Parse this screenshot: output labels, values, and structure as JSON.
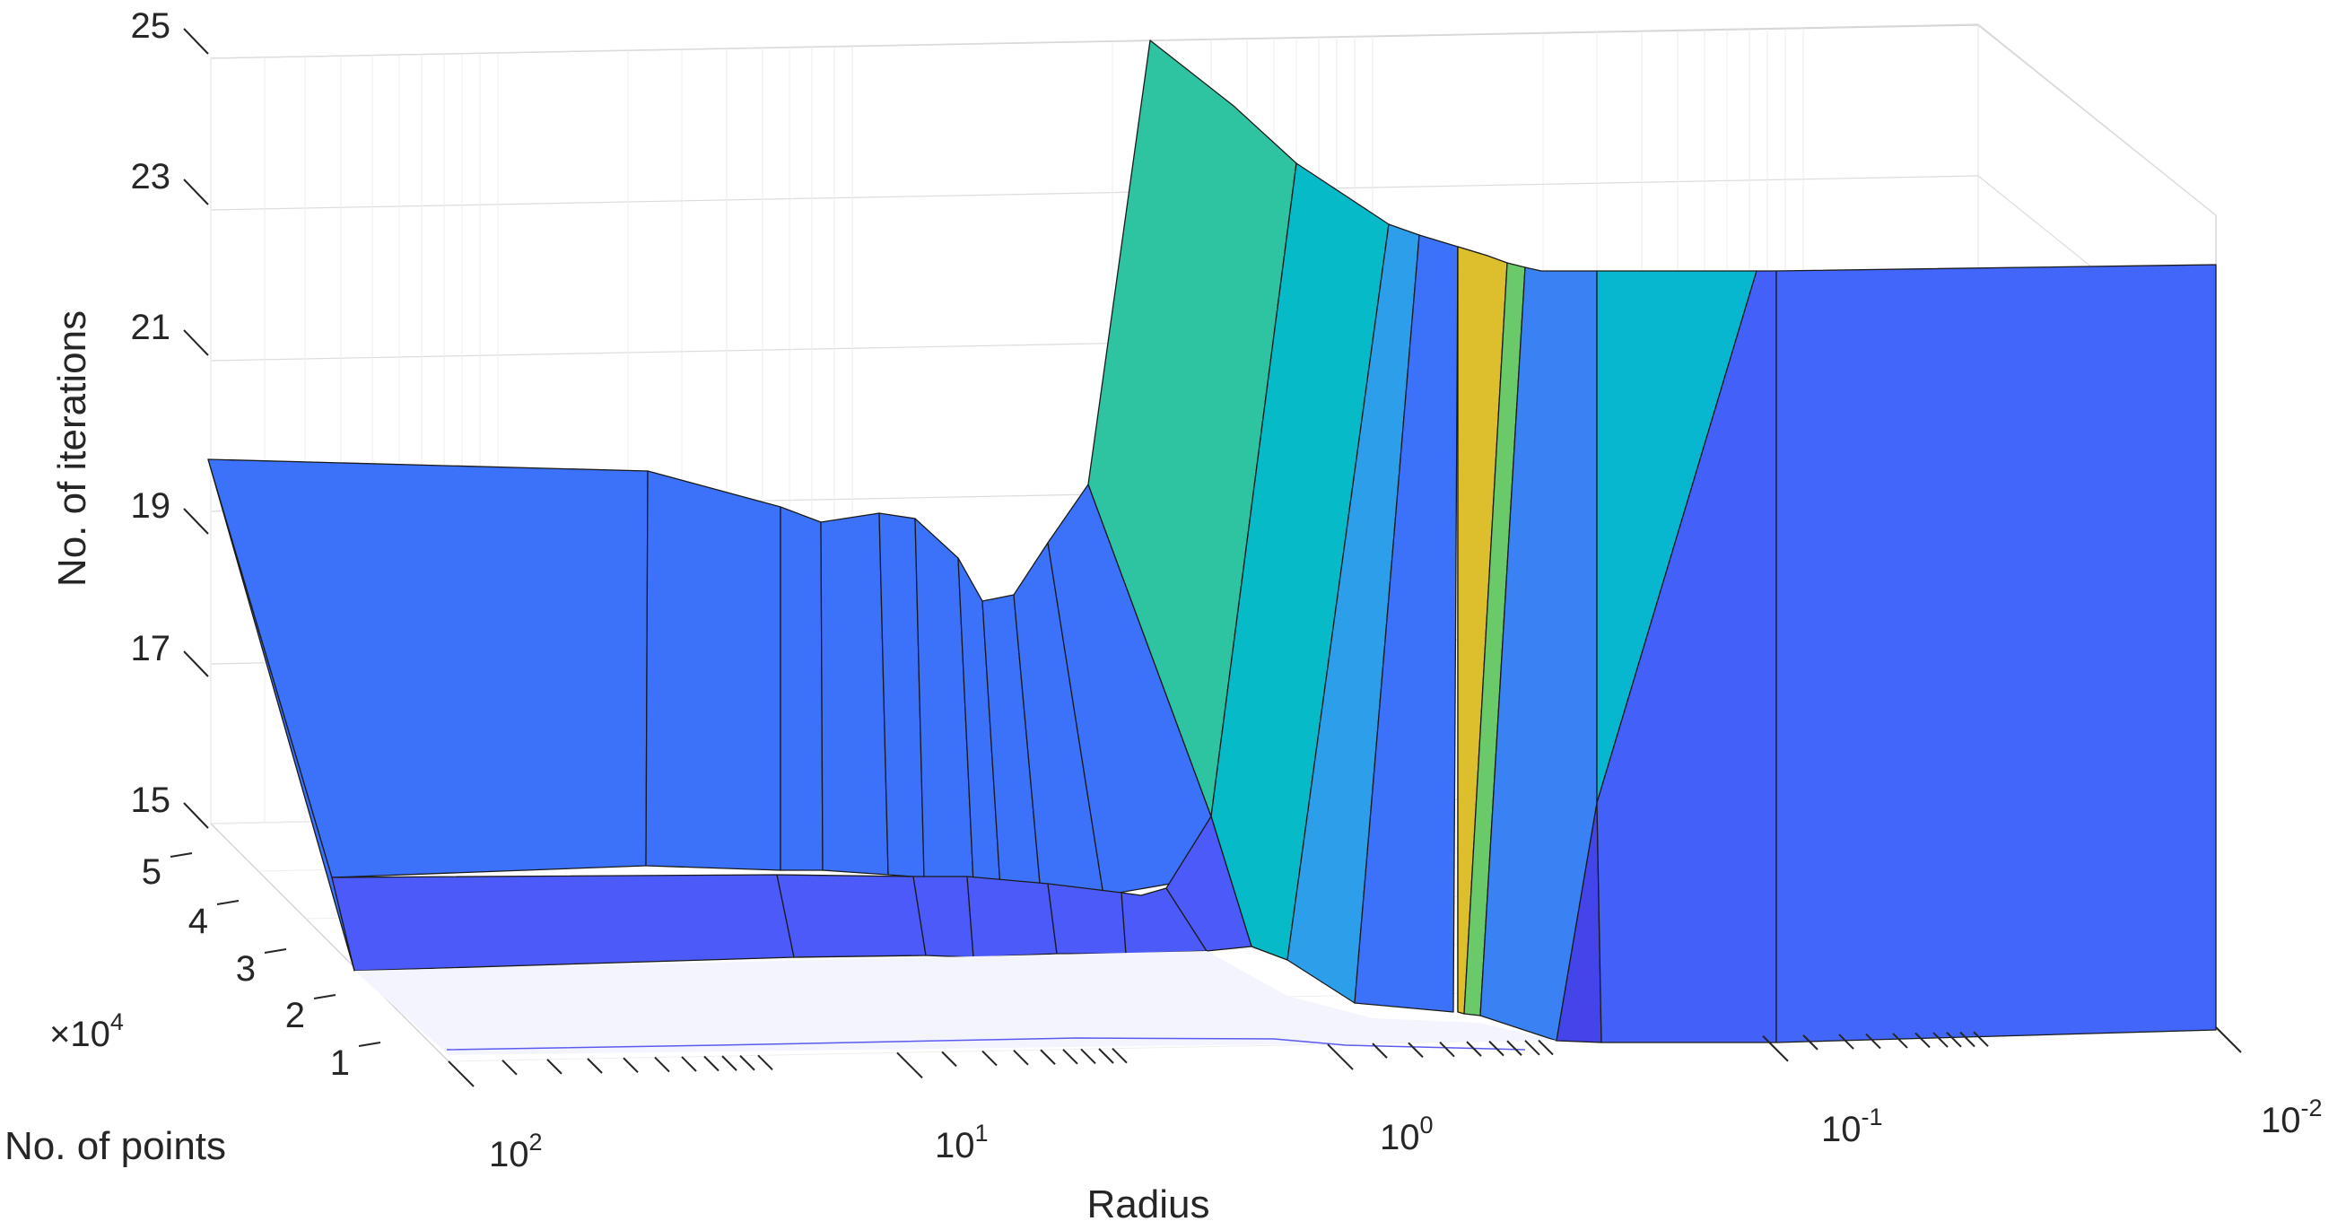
{
  "chart_data": {
    "type": "surface",
    "title": "",
    "xlabel": "Radius",
    "ylabel": "No. of points",
    "zlabel": "No. of iterations",
    "x_scale": "log",
    "x_direction": "reversed",
    "x_ticks": [
      {
        "base": "10",
        "exp": "2"
      },
      {
        "base": "10",
        "exp": "1"
      },
      {
        "base": "10",
        "exp": "0"
      },
      {
        "base": "10",
        "exp": "-1"
      },
      {
        "base": "10",
        "exp": "-2"
      }
    ],
    "y_ticks": [
      "1",
      "2",
      "3",
      "4",
      "5"
    ],
    "y_multiplier": {
      "text": "×10",
      "exp": "4"
    },
    "z_ticks": [
      "15",
      "17",
      "19",
      "21",
      "23",
      "25"
    ],
    "zlim": [
      15,
      25
    ],
    "grid": true,
    "colormap": "parula",
    "x_radius": [
      150,
      40,
      25,
      20,
      15,
      12,
      10,
      8,
      6,
      4,
      2.5,
      1.5,
      1.2,
      1.0,
      0.8,
      0.7,
      0.6,
      0.35,
      0.15,
      0.01
    ],
    "iterations_at_max_points": [
      19.5,
      19.5,
      19,
      18.8,
      18.8,
      18.6,
      17.9,
      18.1,
      18.6,
      19.4,
      25,
      23.5,
      22.7,
      22.5,
      22.1,
      22,
      22,
      22,
      22,
      22
    ]
  }
}
